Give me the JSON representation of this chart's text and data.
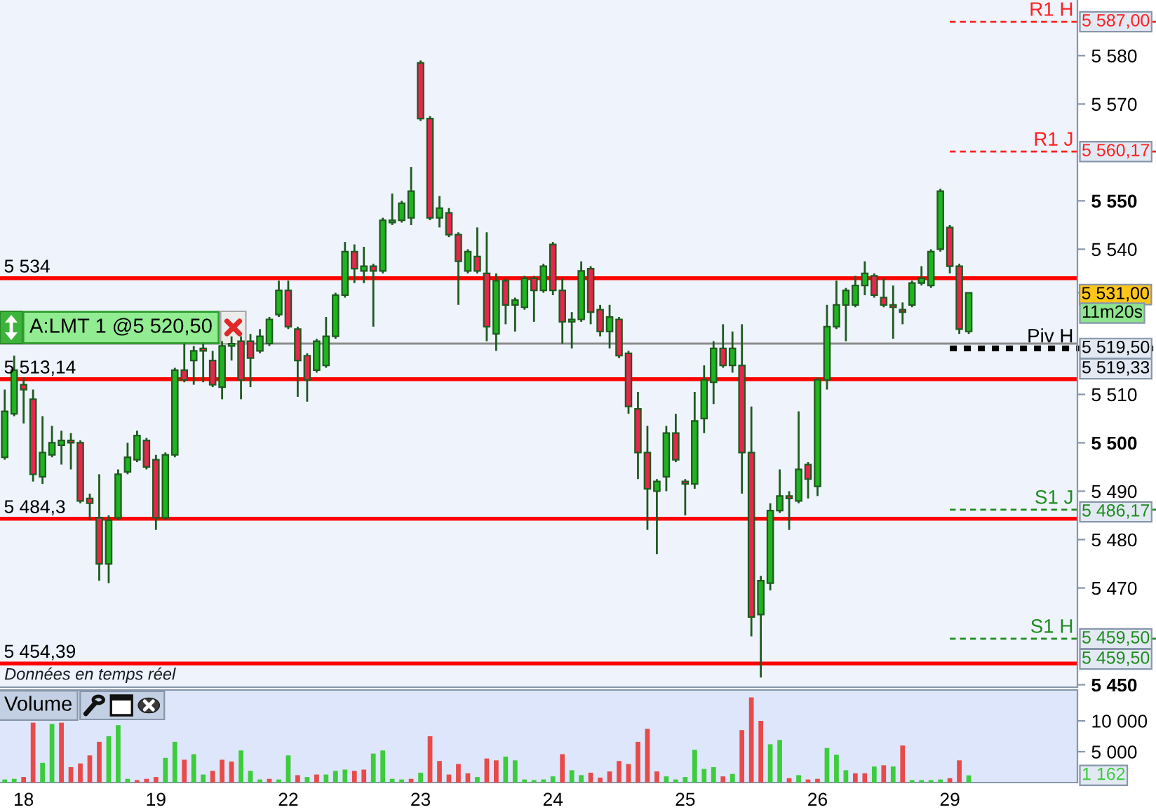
{
  "chart_data": [
    {
      "type": "candlestick",
      "categories": [
        null,
        null,
        "18",
        null,
        null,
        null,
        null,
        null,
        null,
        null,
        null,
        null,
        null,
        null,
        null,
        null,
        "19",
        null,
        null,
        null,
        null,
        null,
        null,
        null,
        null,
        null,
        null,
        null,
        null,
        null,
        "22",
        null,
        null,
        null,
        null,
        null,
        null,
        null,
        null,
        null,
        null,
        null,
        null,
        null,
        "23",
        null,
        null,
        null,
        null,
        null,
        null,
        null,
        null,
        null,
        null,
        null,
        null,
        null,
        "24",
        null,
        null,
        null,
        null,
        null,
        null,
        null,
        null,
        null,
        null,
        null,
        null,
        null,
        "25",
        null,
        null,
        null,
        null,
        null,
        null,
        null,
        null,
        null,
        null,
        null,
        null,
        null,
        "26",
        null,
        null,
        null,
        null,
        null,
        null,
        null,
        null,
        null,
        null,
        null,
        null,
        null,
        "29",
        null,
        null,
        null,
        null,
        null,
        null,
        null,
        null,
        null,
        null,
        null,
        null,
        null
      ],
      "ohlc": [
        [
          5497,
          5511,
          5496.5,
          5506.5
        ],
        [
          5506,
          5518,
          5505.5,
          5515
        ],
        [
          5512,
          5513.5,
          5504,
          5511
        ],
        [
          5509,
          5511,
          5492,
          5493.5
        ],
        [
          5493,
          5505.5,
          5491.5,
          5498
        ],
        [
          5497.5,
          5503.5,
          5497,
          5500
        ],
        [
          5499.5,
          5502.5,
          5495.5,
          5500.5
        ],
        [
          5500.5,
          5502,
          5494.5,
          5500
        ],
        [
          5500,
          5500.5,
          5487.5,
          5488
        ],
        [
          5488.5,
          5489.5,
          5484,
          5487.5
        ],
        [
          5484.5,
          5493.5,
          5471.5,
          5475
        ],
        [
          5475,
          5485,
          5471,
          5484
        ],
        [
          5484.5,
          5494.5,
          5484,
          5493.5
        ],
        [
          5494,
          5500,
          5493.5,
          5497
        ],
        [
          5496.5,
          5502.5,
          5496,
          5501.5
        ],
        [
          5500.5,
          5501,
          5494.5,
          5495
        ],
        [
          5496.5,
          5497.5,
          5482,
          5484.5
        ],
        [
          5484.5,
          5498,
          5484,
          5497.5
        ],
        [
          5497.5,
          5515.5,
          5497,
          5515
        ],
        [
          5515,
          5520.5,
          5512.5,
          5513
        ],
        [
          5517,
          5520,
          5512,
          5519
        ],
        [
          5519.5,
          5520.5,
          5512.5,
          5519
        ],
        [
          5517,
          5519,
          5511.5,
          5512
        ],
        [
          5511.5,
          5521,
          5509,
          5520
        ],
        [
          5520,
          5522,
          5517,
          5520.5
        ],
        [
          5521,
          5522,
          5509,
          5513
        ],
        [
          5521,
          5522.5,
          5511.5,
          5517.5
        ],
        [
          5519,
          5523.5,
          5518.5,
          5522
        ],
        [
          5520.5,
          5526,
          5520,
          5525.5
        ],
        [
          5526.5,
          5533.5,
          5526,
          5531.5
        ],
        [
          5531.5,
          5533.5,
          5523.5,
          5524
        ],
        [
          5523.5,
          5524,
          5509.5,
          5517
        ],
        [
          5518,
          5518.5,
          5508.5,
          5513
        ],
        [
          5515,
          5521.5,
          5514.5,
          5521
        ],
        [
          5516,
          5526,
          5515.5,
          5522
        ],
        [
          5522,
          5531,
          5521.5,
          5530.5
        ],
        [
          5530.5,
          5541.5,
          5530,
          5539.5
        ],
        [
          5539.5,
          5541,
          5533,
          5536
        ],
        [
          5535.5,
          5540.5,
          5533,
          5536.5
        ],
        [
          5536.5,
          5537,
          5524,
          5535.5
        ],
        [
          5535.5,
          5546.5,
          5535,
          5546
        ],
        [
          5545.5,
          5551.5,
          5545,
          5546
        ],
        [
          5546,
          5550,
          5545.5,
          5549.5
        ],
        [
          5546.5,
          5557,
          5545,
          5552
        ],
        [
          5578.5,
          5579,
          5566.5,
          5567
        ],
        [
          5567,
          5567.5,
          5546,
          5546.5
        ],
        [
          5546.5,
          5551,
          5544.5,
          5548.5
        ],
        [
          5547.5,
          5548.5,
          5542.5,
          5543
        ],
        [
          5543,
          5543.5,
          5528.5,
          5537.5
        ],
        [
          5535.5,
          5540,
          5535,
          5539.5
        ],
        [
          5538.5,
          5544.5,
          5535,
          5535.5
        ],
        [
          5535,
          5543.5,
          5521,
          5524
        ],
        [
          5522.5,
          5535,
          5519,
          5533.5
        ],
        [
          5533.5,
          5534,
          5524.5,
          5528.5
        ],
        [
          5528.5,
          5530,
          5523,
          5529.5
        ],
        [
          5528,
          5534.5,
          5527.5,
          5534
        ],
        [
          5534,
          5534.5,
          5525,
          5531.5
        ],
        [
          5531.5,
          5537,
          5531,
          5536.5
        ],
        [
          5541,
          5541.5,
          5530.5,
          5531.5
        ],
        [
          5531.5,
          5534,
          5520.5,
          5525
        ],
        [
          5525,
          5527,
          5519.5,
          5525.5
        ],
        [
          5525.5,
          5537.5,
          5525,
          5535.5
        ],
        [
          5536,
          5536.5,
          5524.5,
          5527
        ],
        [
          5527.5,
          5528.5,
          5522,
          5523
        ],
        [
          5523,
          5528.5,
          5519.5,
          5526
        ],
        [
          5525.5,
          5526,
          5517.5,
          5518
        ],
        [
          5518.5,
          5519,
          5506,
          5507.5
        ],
        [
          5507,
          5510.5,
          5492.5,
          5498
        ],
        [
          5498,
          5503.5,
          5482,
          5490.5
        ],
        [
          5490,
          5492.5,
          5477,
          5492
        ],
        [
          5493,
          5503.5,
          5490,
          5502
        ],
        [
          5502,
          5506,
          5496,
          5496.5
        ],
        [
          5492,
          5492.5,
          5485,
          5491.5
        ],
        [
          5491.5,
          5510.5,
          5490.5,
          5504.5
        ],
        [
          5505,
          5516,
          5502,
          5513
        ],
        [
          5512.5,
          5521,
          5508,
          5519.5
        ],
        [
          5519.5,
          5524.5,
          5515.5,
          5516
        ],
        [
          5516,
          5523,
          5514.5,
          5519.5
        ],
        [
          5516,
          5524.5,
          5489.5,
          5498
        ],
        [
          5498,
          5507.5,
          5460,
          5464
        ],
        [
          5464.5,
          5472.5,
          5451.5,
          5471.5
        ],
        [
          5471,
          5487.5,
          5469.5,
          5486
        ],
        [
          5486,
          5494.5,
          5485.5,
          5489
        ],
        [
          5489,
          5490,
          5482,
          5488.5
        ],
        [
          5488,
          5506.5,
          5487.5,
          5494.5
        ],
        [
          5495.5,
          5496,
          5488.5,
          5492.5
        ],
        [
          5491,
          5513.5,
          5489,
          5513
        ],
        [
          5513,
          5528.5,
          5511,
          5524
        ],
        [
          5524,
          5533.5,
          5523.5,
          5528.5
        ],
        [
          5528.5,
          5532,
          5521,
          5531.5
        ],
        [
          5528.5,
          5534.5,
          5528,
          5532.5
        ],
        [
          5532.5,
          5537.5,
          5530.5,
          5535
        ],
        [
          5534.5,
          5535,
          5530,
          5530.5
        ],
        [
          5530,
          5534,
          5528,
          5528.5
        ],
        [
          5528.5,
          5532.5,
          5521.5,
          5528
        ],
        [
          5527.5,
          5529,
          5524.5,
          5527
        ],
        [
          5528.5,
          5533.5,
          5528,
          5533
        ],
        [
          5533,
          5536.5,
          5532.5,
          5534
        ],
        [
          5532.5,
          5540,
          5532,
          5539.5
        ],
        [
          5540,
          5552.5,
          5539.5,
          5552
        ],
        [
          5544.5,
          5545,
          5535,
          5536.5
        ],
        [
          5536.5,
          5537,
          5522.5,
          5523.5
        ],
        [
          5523,
          5531,
          5522.5,
          5531
        ],
        null,
        null,
        null,
        null,
        null,
        null,
        null,
        null,
        null,
        null,
        null
      ],
      "colors": [
        "#1fb41f",
        "#1fb41f",
        "#e8264c",
        "#e8264c",
        "#1fb41f",
        "#1fb41f",
        "#1fb41f",
        "#e8264c",
        "#e8264c",
        "#e8264c",
        "#e8264c",
        "#1fb41f",
        "#1fb41f",
        "#1fb41f",
        "#1fb41f",
        "#e8264c",
        "#e8264c",
        "#1fb41f",
        "#1fb41f",
        "#e8264c",
        "#1fb41f",
        "#e8264c",
        "#e8264c",
        "#1fb41f",
        "#1fb41f",
        "#e8264c",
        "#e8264c",
        "#1fb41f",
        "#1fb41f",
        "#1fb41f",
        "#e8264c",
        "#e8264c",
        "#e8264c",
        "#1fb41f",
        "#1fb41f",
        "#1fb41f",
        "#1fb41f",
        "#e8264c",
        "#1fb41f",
        "#e8264c",
        "#1fb41f",
        "#1fb41f",
        "#1fb41f",
        "#1fb41f",
        "#e8264c",
        "#e8264c",
        "#1fb41f",
        "#e8264c",
        "#e8264c",
        "#1fb41f",
        "#e8264c",
        "#e8264c",
        "#1fb41f",
        "#e8264c",
        "#1fb41f",
        "#1fb41f",
        "#e8264c",
        "#1fb41f",
        "#e8264c",
        "#e8264c",
        "#1fb41f",
        "#1fb41f",
        "#e8264c",
        "#e8264c",
        "#1fb41f",
        "#e8264c",
        "#e8264c",
        "#e8264c",
        "#e8264c",
        "#1fb41f",
        "#1fb41f",
        "#e8264c",
        "#e8264c",
        "#1fb41f",
        "#1fb41f",
        "#1fb41f",
        "#e8264c",
        "#1fb41f",
        "#e8264c",
        "#e8264c",
        "#1fb41f",
        "#1fb41f",
        "#1fb41f",
        "#e8264c",
        "#1fb41f",
        "#e8264c",
        "#1fb41f",
        "#1fb41f",
        "#1fb41f",
        "#1fb41f",
        "#1fb41f",
        "#1fb41f",
        "#e8264c",
        "#e8264c",
        "#e8264c",
        "#e8264c",
        "#1fb41f",
        "#1fb41f",
        "#1fb41f",
        "#1fb41f",
        "#e8264c",
        "#e8264c",
        "#1fb41f",
        null,
        null,
        null,
        null,
        null,
        null,
        null,
        null,
        null,
        null,
        null
      ],
      "ylim": [
        5449.5,
        5591.5
      ],
      "yticks": [
        {
          "value": 5450,
          "label": "5 450"
        },
        {
          "value": 5470,
          "label": "5 470"
        },
        {
          "value": 5480,
          "label": "5 480"
        },
        {
          "value": 5490,
          "label": "5 490"
        },
        {
          "value": 5500,
          "label": "5 500"
        },
        {
          "value": 5510,
          "label": "5 510"
        },
        {
          "value": 5531,
          "label": "5 531,00"
        },
        {
          "value": 5540,
          "label": "5 540"
        },
        {
          "value": 5550,
          "label": "5 550"
        },
        {
          "value": 5570,
          "label": "5 570"
        },
        {
          "value": 5580,
          "label": "5 580"
        }
      ],
      "tick_labels": "y",
      "ref_lines": [
        {
          "axis": "y",
          "value": 5534,
          "label": "5 534",
          "color": "#ff0000"
        },
        {
          "axis": "y",
          "value": 5513.14,
          "label": "5 513,14",
          "color": "#ff0000"
        },
        {
          "axis": "y",
          "value": 5484.3,
          "label": "5 484,3",
          "color": "#ff0000"
        },
        {
          "axis": "y",
          "value": 5454.39,
          "label": "5 454,39",
          "color": "#ff0000"
        },
        {
          "axis": "y",
          "value": 5520.5,
          "color": "#8c8c8c"
        },
        {
          "axis": "y",
          "value": 5587,
          "label": "R1 H",
          "color": "#ff2020",
          "line_style": "dashed"
        },
        {
          "axis": "y",
          "value": 5560.17,
          "label": "R1 J",
          "color": "#ff2020",
          "line_style": "dashed"
        },
        {
          "axis": "y",
          "value": 5519.5,
          "label": "Piv H",
          "color": "#000000",
          "line_style": "dotted"
        },
        {
          "axis": "y",
          "value": 5486.17,
          "label": "S1 J",
          "color": "#1e8c1e",
          "line_style": "dashed"
        },
        {
          "axis": "y",
          "value": 5459.5,
          "label": "S1 H",
          "color": "#1e8c1e",
          "line_style": "dashed"
        }
      ],
      "annotations": [
        {
          "text": "A:LMT 1 @5 520,50",
          "y": 5520.5
        },
        {
          "text": "5 587,00",
          "y": 5587
        },
        {
          "text": "5 560,17",
          "y": 5560.17
        },
        "11m20s",
        {
          "text": "5 519,50",
          "y": 5519.5
        },
        "5 519,33",
        {
          "text": "5 486,17",
          "y": 5486.17
        },
        {
          "text": "5 459,50",
          "y": 5459.5
        },
        "5 459,50",
        "Données en temps réel"
      ]
    },
    {
      "type": "bar",
      "title": "Volume",
      "categories": [
        null,
        null,
        "18",
        null,
        null,
        null,
        null,
        null,
        null,
        null,
        null,
        null,
        null,
        null,
        null,
        null,
        "19",
        null,
        null,
        null,
        null,
        null,
        null,
        null,
        null,
        null,
        null,
        null,
        null,
        null,
        "22",
        null,
        null,
        null,
        null,
        null,
        null,
        null,
        null,
        null,
        null,
        null,
        null,
        null,
        "23",
        null,
        null,
        null,
        null,
        null,
        null,
        null,
        null,
        null,
        null,
        null,
        null,
        null,
        "24",
        null,
        null,
        null,
        null,
        null,
        null,
        null,
        null,
        null,
        null,
        null,
        null,
        null,
        "25",
        null,
        null,
        null,
        null,
        null,
        null,
        null,
        null,
        null,
        null,
        null,
        null,
        null,
        "26",
        null,
        null,
        null,
        null,
        null,
        null,
        null,
        null,
        null,
        null,
        null,
        null,
        null,
        "29",
        null,
        null,
        null,
        null,
        null,
        null,
        null,
        null,
        null,
        null,
        null,
        null,
        null
      ],
      "values": [
        500,
        600,
        900,
        9700,
        3200,
        9500,
        9700,
        2500,
        3100,
        4400,
        6600,
        7500,
        9300,
        600,
        400,
        600,
        900,
        4000,
        6600,
        3700,
        4600,
        1300,
        1900,
        3700,
        3400,
        5200,
        1900,
        500,
        600,
        500,
        4400,
        1200,
        900,
        1300,
        1300,
        1900,
        2100,
        1900,
        2100,
        4700,
        5200,
        600,
        500,
        600,
        1600,
        7500,
        3500,
        1300,
        3000,
        1500,
        900,
        3900,
        3600,
        4200,
        3600,
        500,
        400,
        500,
        1000,
        4600,
        2000,
        1200,
        1600,
        800,
        1800,
        3500,
        3000,
        6600,
        8700,
        1800,
        1000,
        500,
        900,
        5300,
        2200,
        2500,
        1000,
        1400,
        8500,
        13800,
        10000,
        6200,
        6900,
        700,
        1200,
        500,
        600,
        5600,
        4500,
        2000,
        1500,
        1500,
        2600,
        2800,
        2600,
        6000,
        400,
        400,
        400,
        500,
        700,
        3600,
        1162,
        null,
        null,
        null,
        null,
        null,
        null,
        null,
        null,
        null,
        null,
        null
      ],
      "colors": [
        "#3ccc3c",
        "#3ccc3c",
        "#e84a4a",
        "#e84a4a",
        "#3ccc3c",
        "#3ccc3c",
        "#e84a4a",
        "#e84a4a",
        "#e84a4a",
        "#e84a4a",
        "#e84a4a",
        "#3ccc3c",
        "#3ccc3c",
        "#3ccc3c",
        "#e84a4a",
        "#e84a4a",
        "#e84a4a",
        "#3ccc3c",
        "#3ccc3c",
        "#e84a4a",
        "#3ccc3c",
        "#3ccc3c",
        "#e84a4a",
        "#e84a4a",
        "#e84a4a",
        "#3ccc3c",
        "#3ccc3c",
        "#3ccc3c",
        "#e84a4a",
        "#3ccc3c",
        "#3ccc3c",
        "#e84a4a",
        "#3ccc3c",
        "#e84a4a",
        "#3ccc3c",
        "#3ccc3c",
        "#3ccc3c",
        "#e84a4a",
        "#e84a4a",
        "#3ccc3c",
        "#3ccc3c",
        "#3ccc3c",
        "#3ccc3c",
        "#e84a4a",
        "#3ccc3c",
        "#e84a4a",
        "#e84a4a",
        "#e84a4a",
        "#e84a4a",
        "#e84a4a",
        "#3ccc3c",
        "#e84a4a",
        "#e84a4a",
        "#3ccc3c",
        "#3ccc3c",
        "#3ccc3c",
        "#3ccc3c",
        "#3ccc3c",
        "#3ccc3c",
        "#e84a4a",
        "#3ccc3c",
        "#3ccc3c",
        "#e84a4a",
        "#e84a4a",
        "#e84a4a",
        "#e84a4a",
        "#e84a4a",
        "#e84a4a",
        "#e84a4a",
        "#e84a4a",
        "#3ccc3c",
        "#3ccc3c",
        "#3ccc3c",
        "#3ccc3c",
        "#3ccc3c",
        "#3ccc3c",
        "#e84a4a",
        "#3ccc3c",
        "#e84a4a",
        "#e84a4a",
        "#e84a4a",
        "#3ccc3c",
        "#3ccc3c",
        "#e84a4a",
        "#3ccc3c",
        "#e84a4a",
        "#e84a4a",
        "#3ccc3c",
        "#3ccc3c",
        "#3ccc3c",
        "#e84a4a",
        "#e84a4a",
        "#3ccc3c",
        "#e84a4a",
        "#3ccc3c",
        "#e84a4a",
        "#3ccc3c",
        "#3ccc3c",
        "#3ccc3c",
        "#3ccc3c",
        "#e84a4a",
        "#e84a4a",
        "#3ccc3c",
        null,
        null,
        null,
        null,
        null,
        null,
        null,
        null,
        null,
        null,
        null
      ],
      "ylim": [
        0,
        15000
      ],
      "yticks": [
        {
          "value": 5000,
          "label": "5 000"
        },
        {
          "value": 10000,
          "label": "10 000"
        }
      ],
      "annotations": [
        {
          "text": "1 162",
          "y": 1162
        }
      ]
    }
  ]
}
